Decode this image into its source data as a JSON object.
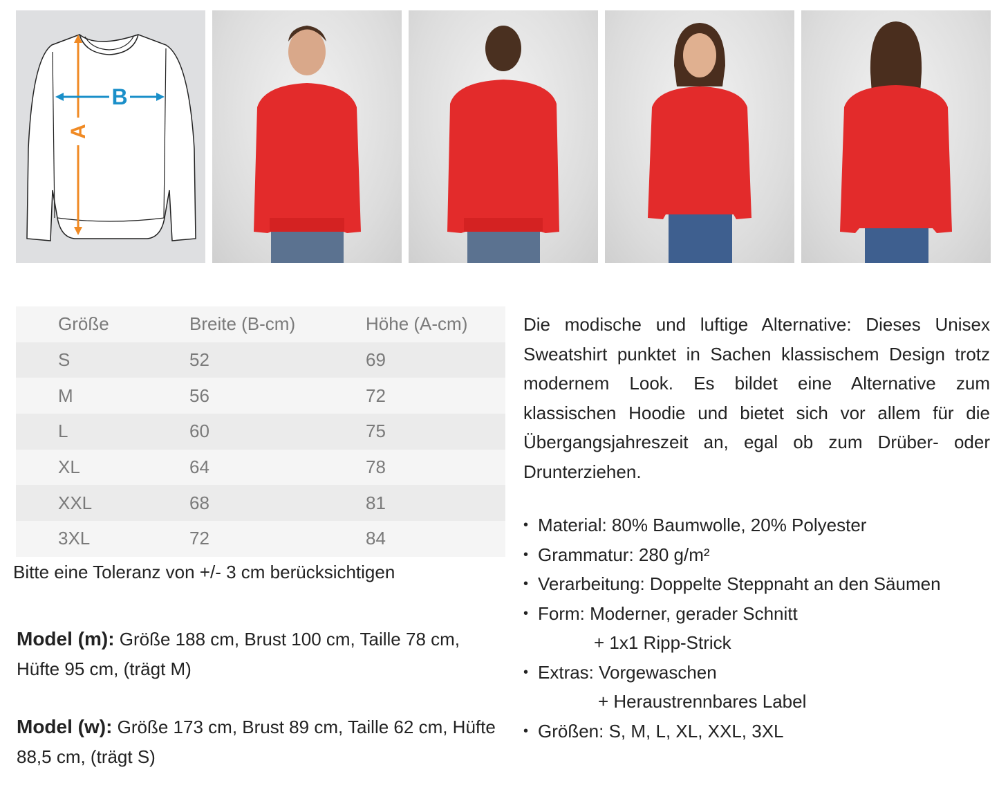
{
  "size_diagram": {
    "label_a": "A",
    "label_b": "B",
    "color_a": "#f08a24",
    "color_b": "#1a8fc9"
  },
  "photos": [
    {
      "name": "model-m-front",
      "shirt_color": "#e32b2b"
    },
    {
      "name": "model-m-back",
      "shirt_color": "#e32b2b"
    },
    {
      "name": "model-w-front",
      "shirt_color": "#e32b2b"
    },
    {
      "name": "model-w-back",
      "shirt_color": "#e32b2b"
    }
  ],
  "size_table": {
    "headers": [
      "Größe",
      "Breite (B-cm)",
      "Höhe (A-cm)"
    ],
    "rows": [
      [
        "S",
        "52",
        "69"
      ],
      [
        "M",
        "56",
        "72"
      ],
      [
        "L",
        "60",
        "75"
      ],
      [
        "XL",
        "64",
        "78"
      ],
      [
        "XXL",
        "68",
        "81"
      ],
      [
        "3XL",
        "72",
        "84"
      ]
    ]
  },
  "tolerance": "Bitte eine Toleranz von +/- 3 cm berücksichtigen",
  "model_m": {
    "label": "Model (m):",
    "text": " Größe 188 cm, Brust 100 cm, Taille 78 cm, Hüfte 95 cm, (trägt M)"
  },
  "model_w": {
    "label": "Model (w):",
    "text": " Größe 173 cm, Brust 89 cm, Taille 62 cm, Hüfte 88,5 cm, (trägt S)"
  },
  "description": "Die modische und luftige Alternative: Dieses Unisex Sweatshirt punktet in Sachen klassischem Design trotz modernem Look. Es bildet eine Alternative zum klassischen Hoodie und bietet sich vor allem für die Übergangsjahreszeit an, egal ob zum Drüber- oder Drunterziehen.",
  "features": [
    {
      "text": "Material: 80% Baumwolle, 20% Polyester",
      "type": "b"
    },
    {
      "text": "Grammatur: 280 g/m²",
      "type": "b"
    },
    {
      "text": "Verarbeitung: Doppelte Steppnaht an den Säumen",
      "type": "b"
    },
    {
      "text": "Form: Moderner, gerader Schnitt",
      "type": "b"
    },
    {
      "text": "+ 1x1 Ripp-Strick",
      "type": "sub"
    },
    {
      "text": "Extras: Vorgewaschen",
      "type": "b"
    },
    {
      "text": "+ Heraustrennbares Label",
      "type": "sub2"
    },
    {
      "text": "Größen:  S, M, L, XL, XXL, 3XL",
      "type": "b"
    }
  ]
}
